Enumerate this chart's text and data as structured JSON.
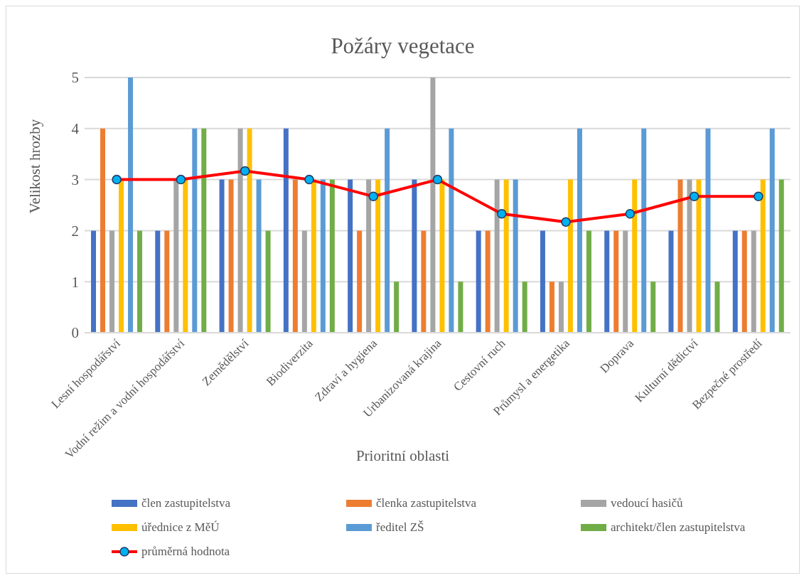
{
  "chart_data": {
    "type": "bar",
    "title": "Požáry vegetace",
    "xlabel": "Prioritní oblasti",
    "ylabel": "Velikost hrozby",
    "categories": [
      "Lesní hospodářství",
      "Vodní režim a vodní hospodářství",
      "Zemědělství",
      "Biodiverzita",
      "Zdraví a hygiena",
      "Urbanizovaná krajina",
      "Cestovní ruch",
      "Průmysl a energetika",
      "Doprava",
      "Kulturní dědictví",
      "Bezpečné prostředí"
    ],
    "series": [
      {
        "name": "člen zastupitelstva",
        "color": "#4472c4",
        "values": [
          2,
          2,
          3,
          4,
          3,
          3,
          2,
          2,
          2,
          2,
          2
        ]
      },
      {
        "name": "členka zastupitelstva",
        "color": "#ed7d31",
        "values": [
          4,
          2,
          3,
          3,
          2,
          2,
          2,
          1,
          2,
          3,
          2
        ]
      },
      {
        "name": "vedoucí hasičů",
        "color": "#a5a5a5",
        "values": [
          2,
          3,
          4,
          2,
          3,
          5,
          3,
          1,
          2,
          3,
          2
        ]
      },
      {
        "name": "úřednice z MěÚ",
        "color": "#ffc000",
        "values": [
          3,
          3,
          4,
          3,
          3,
          3,
          3,
          3,
          3,
          3,
          3
        ]
      },
      {
        "name": "ředitel ZŠ",
        "color": "#5b9bd5",
        "values": [
          5,
          4,
          3,
          3,
          4,
          4,
          3,
          4,
          4,
          4,
          4
        ]
      },
      {
        "name": "architekt/člen zastupitelstva",
        "color": "#70ad47",
        "values": [
          2,
          4,
          2,
          3,
          1,
          1,
          1,
          2,
          1,
          1,
          3
        ]
      },
      {
        "name": "průměrná hodnota",
        "type": "line",
        "color": "#ff0000",
        "marker": "circle",
        "values": [
          3,
          3,
          3.17,
          3,
          2.67,
          3,
          2.33,
          2.17,
          2.33,
          2.67,
          2.67
        ]
      }
    ],
    "ylim": [
      0,
      5
    ],
    "yticks": [
      0,
      1,
      2,
      3,
      4,
      5
    ],
    "grid": "y",
    "legend": "bottom"
  }
}
